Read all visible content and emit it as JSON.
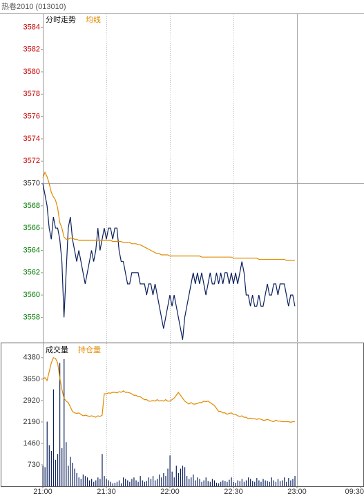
{
  "header": {
    "title": "热卷2010 (013010)"
  },
  "chart_data": [
    {
      "type": "line",
      "reference_value": 3570,
      "x": [
        0,
        1,
        2,
        3,
        4,
        5,
        6,
        7,
        8,
        9,
        10,
        11,
        12,
        13,
        14,
        15,
        16,
        17,
        18,
        19,
        20,
        21,
        22,
        23,
        24,
        25,
        26,
        27,
        28,
        29,
        30,
        31,
        32,
        33,
        34,
        35,
        36,
        37,
        38,
        39,
        40,
        41,
        42,
        43,
        44,
        45,
        46,
        47,
        48,
        49,
        50,
        51,
        52,
        53,
        54,
        55,
        56,
        57,
        58,
        59,
        60,
        61,
        62,
        63,
        64,
        65,
        66,
        67,
        68,
        69,
        70,
        71,
        72,
        73,
        74,
        75,
        76,
        77,
        78,
        79,
        80,
        81,
        82,
        83,
        84,
        85,
        86,
        87,
        88,
        89,
        90,
        91,
        92,
        93,
        94,
        95,
        96,
        97,
        98,
        99,
        100,
        101,
        102,
        103,
        104,
        105,
        106,
        107,
        108,
        109,
        110,
        111,
        112,
        113,
        114,
        115,
        116,
        117,
        118,
        119
      ],
      "xlim": [
        0,
        150
      ],
      "xticks": [
        0,
        30,
        60,
        90,
        120
      ],
      "ylim": [
        3555.8,
        3585.2
      ],
      "yticks": [
        3558,
        3560,
        3562,
        3564,
        3566,
        3568,
        3570,
        3572,
        3574,
        3576,
        3578,
        3580,
        3582,
        3584
      ],
      "series": [
        {
          "name": "分时走势",
          "color": "#0b1f5c",
          "values": [
            3570,
            3569,
            3568,
            3566,
            3565,
            3567,
            3566,
            3566,
            3565,
            3563,
            3558,
            3562,
            3566,
            3567,
            3565,
            3564,
            3563,
            3564,
            3563,
            3562,
            3561,
            3562,
            3563,
            3564,
            3563,
            3564,
            3566,
            3564,
            3565,
            3566,
            3565,
            3566,
            3566,
            3565,
            3566,
            3566,
            3564,
            3563,
            3563,
            3562,
            3561,
            3561,
            3562,
            3562,
            3562,
            3562,
            3561,
            3561,
            3561,
            3560,
            3561,
            3561,
            3560,
            3561,
            3560,
            3559,
            3558,
            3557,
            3558,
            3559,
            3560,
            3559,
            3560,
            3559,
            3558,
            3557,
            3556,
            3558,
            3559,
            3560,
            3561,
            3562,
            3561,
            3562,
            3561,
            3562,
            3561,
            3560,
            3561,
            3562,
            3561,
            3561,
            3562,
            3561,
            3562,
            3561,
            3562,
            3562,
            3561,
            3562,
            3561,
            3562,
            3561,
            3562,
            3563,
            3562,
            3560,
            3560,
            3559,
            3560,
            3559,
            3559,
            3560,
            3559,
            3559,
            3560,
            3561,
            3560,
            3560,
            3561,
            3561,
            3560,
            3561,
            3561,
            3561,
            3560,
            3559,
            3560,
            3560,
            3559
          ]
        },
        {
          "name": "均线",
          "color": "#e08a00",
          "values": [
            3570.5,
            3571,
            3570.6,
            3570,
            3569.2,
            3568.8,
            3568.5,
            3567.8,
            3566.5,
            3566,
            3565.2,
            3565,
            3565,
            3565.1,
            3565.1,
            3565,
            3565,
            3564.9,
            3564.9,
            3564.9,
            3564.9,
            3564.9,
            3564.9,
            3564.9,
            3564.9,
            3564.9,
            3564.9,
            3564.9,
            3564.9,
            3564.9,
            3564.9,
            3564.9,
            3564.9,
            3564.8,
            3564.8,
            3564.8,
            3564.8,
            3564.8,
            3564.7,
            3564.7,
            3564.7,
            3564.7,
            3564.6,
            3564.6,
            3564.6,
            3564.5,
            3564.5,
            3564.4,
            3564.3,
            3564.2,
            3564.1,
            3564,
            3563.9,
            3563.8,
            3563.7,
            3563.7,
            3563.6,
            3563.6,
            3563.6,
            3563.6,
            3563.5,
            3563.5,
            3563.5,
            3563.5,
            3563.5,
            3563.5,
            3563.5,
            3563.5,
            3563.5,
            3563.5,
            3563.5,
            3563.5,
            3563.5,
            3563.5,
            3563.5,
            3563.4,
            3563.4,
            3563.4,
            3563.4,
            3563.4,
            3563.4,
            3563.4,
            3563.4,
            3563.4,
            3563.4,
            3563.4,
            3563.4,
            3563.4,
            3563.4,
            3563.4,
            3563.3,
            3563.3,
            3563.3,
            3563.3,
            3563.3,
            3563.3,
            3563.3,
            3563.3,
            3563.3,
            3563.3,
            3563.3,
            3563.3,
            3563.2,
            3563.2,
            3563.2,
            3563.2,
            3563.2,
            3563.2,
            3563.2,
            3563.2,
            3563.2,
            3563.2,
            3563.2,
            3563.2,
            3563.2,
            3563.1,
            3563.1,
            3563.1,
            3563.1,
            3563.1
          ]
        }
      ]
    },
    {
      "type": "bar",
      "x": [
        0,
        1,
        2,
        3,
        4,
        5,
        6,
        7,
        8,
        9,
        10,
        11,
        12,
        13,
        14,
        15,
        16,
        17,
        18,
        19,
        20,
        21,
        22,
        23,
        24,
        25,
        26,
        27,
        28,
        29,
        30,
        31,
        32,
        33,
        34,
        35,
        36,
        37,
        38,
        39,
        40,
        41,
        42,
        43,
        44,
        45,
        46,
        47,
        48,
        49,
        50,
        51,
        52,
        53,
        54,
        55,
        56,
        57,
        58,
        59,
        60,
        61,
        62,
        63,
        64,
        65,
        66,
        67,
        68,
        69,
        70,
        71,
        72,
        73,
        74,
        75,
        76,
        77,
        78,
        79,
        80,
        81,
        82,
        83,
        84,
        85,
        86,
        87,
        88,
        89,
        90,
        91,
        92,
        93,
        94,
        95,
        96,
        97,
        98,
        99,
        100,
        101,
        102,
        103,
        104,
        105,
        106,
        107,
        108,
        109,
        110,
        111,
        112,
        113,
        114,
        115,
        116,
        117,
        118,
        119
      ],
      "xlim": [
        0,
        150
      ],
      "xticks": [
        {
          "value": 0,
          "label": "21:00"
        },
        {
          "value": 30,
          "label": "21:30"
        },
        {
          "value": 60,
          "label": "22:00"
        },
        {
          "value": 90,
          "label": "22:30"
        },
        {
          "value": 120,
          "label": "23:00"
        },
        {
          "value": 150,
          "label": "09:30"
        }
      ],
      "ylim": [
        0,
        4870
      ],
      "yticks": [
        730,
        1460,
        2190,
        2920,
        3650,
        4380
      ],
      "series": [
        {
          "name": "成交量",
          "type": "bar",
          "color": "#0b1f5c",
          "values": [
            700,
            650,
            2200,
            1400,
            1200,
            3300,
            900,
            1100,
            4200,
            1300,
            4330,
            1500,
            700,
            1000,
            800,
            600,
            450,
            300,
            250,
            400,
            350,
            300,
            200,
            250,
            150,
            200,
            300,
            250,
            1100,
            350,
            250,
            200,
            150,
            100,
            120,
            150,
            200,
            100,
            300,
            250,
            200,
            150,
            250,
            300,
            200,
            150,
            350,
            200,
            150,
            180,
            300,
            250,
            350,
            200,
            250,
            400,
            300,
            450,
            350,
            600,
            1050,
            500,
            300,
            700,
            450,
            600,
            700,
            650,
            350,
            250,
            300,
            400,
            200,
            300,
            250,
            150,
            200,
            300,
            180,
            150,
            250,
            200,
            120,
            100,
            150,
            200,
            180,
            150,
            220,
            300,
            150,
            120,
            200,
            180,
            250,
            150,
            200,
            300,
            250,
            180,
            150,
            280,
            200,
            150,
            250,
            200,
            180,
            150,
            300,
            200,
            150,
            250,
            180,
            200,
            300,
            150,
            280,
            200,
            250,
            350
          ]
        },
        {
          "name": "持仓量",
          "type": "line",
          "color": "#e08a00",
          "values": [
            3650,
            3700,
            3600,
            3900,
            4200,
            4380,
            4350,
            4200,
            3700,
            3300,
            3000,
            2900,
            2850,
            2700,
            2550,
            2500,
            2480,
            2500,
            2450,
            2400,
            2420,
            2400,
            2380,
            2400,
            2380,
            2350,
            2400,
            2380,
            2420,
            3150,
            3150,
            3180,
            3170,
            3200,
            3200,
            3180,
            3220,
            3200,
            3250,
            3200,
            3200,
            3180,
            3150,
            3100,
            3100,
            3050,
            3050,
            3000,
            2950,
            2950,
            2900,
            2900,
            2920,
            2900,
            2950,
            2900,
            2920,
            2900,
            2950,
            2900,
            2900,
            2950,
            3000,
            3100,
            3200,
            3100,
            3000,
            2900,
            2850,
            2800,
            2850,
            2800,
            2800,
            2820,
            2850,
            2850,
            2900,
            2880,
            2900,
            2850,
            2800,
            2750,
            2650,
            2550,
            2550,
            2500,
            2500,
            2450,
            2480,
            2500,
            2450,
            2450,
            2400,
            2380,
            2400,
            2350,
            2350,
            2300,
            2320,
            2300,
            2300,
            2280,
            2300,
            2280,
            2250,
            2250,
            2280,
            2250,
            2220,
            2200,
            2250,
            2220,
            2220,
            2200,
            2200,
            2200,
            2200,
            2180,
            2200,
            2200
          ]
        }
      ]
    }
  ]
}
